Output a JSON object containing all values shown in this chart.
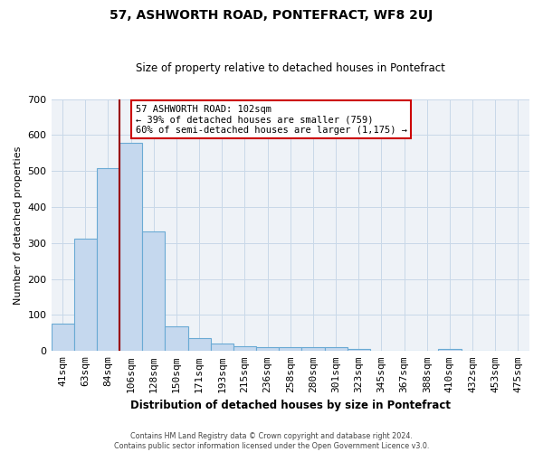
{
  "title": "57, ASHWORTH ROAD, PONTEFRACT, WF8 2UJ",
  "subtitle": "Size of property relative to detached houses in Pontefract",
  "xlabel": "Distribution of detached houses by size in Pontefract",
  "ylabel": "Number of detached properties",
  "bar_labels": [
    "41sqm",
    "63sqm",
    "84sqm",
    "106sqm",
    "128sqm",
    "150sqm",
    "171sqm",
    "193sqm",
    "215sqm",
    "236sqm",
    "258sqm",
    "280sqm",
    "301sqm",
    "323sqm",
    "345sqm",
    "367sqm",
    "388sqm",
    "410sqm",
    "432sqm",
    "453sqm",
    "475sqm"
  ],
  "bar_values": [
    75,
    312,
    507,
    578,
    332,
    68,
    37,
    20,
    14,
    10,
    10,
    10,
    10,
    7,
    0,
    0,
    0,
    7,
    0,
    0,
    0
  ],
  "bar_color": "#c5d8ee",
  "bar_edge_color": "#6aaad4",
  "property_line_x": 3.0,
  "property_line_color": "#990000",
  "annotation_line1": "57 ASHWORTH ROAD: 102sqm",
  "annotation_line2": "← 39% of detached houses are smaller (759)",
  "annotation_line3": "60% of semi-detached houses are larger (1,175) →",
  "annotation_box_color": "#ffffff",
  "annotation_box_edge_color": "#cc0000",
  "ylim": [
    0,
    700
  ],
  "yticks": [
    0,
    100,
    200,
    300,
    400,
    500,
    600,
    700
  ],
  "grid_color": "#c8d8e8",
  "background_color": "#eef2f7",
  "footer_line1": "Contains HM Land Registry data © Crown copyright and database right 2024.",
  "footer_line2": "Contains public sector information licensed under the Open Government Licence v3.0."
}
